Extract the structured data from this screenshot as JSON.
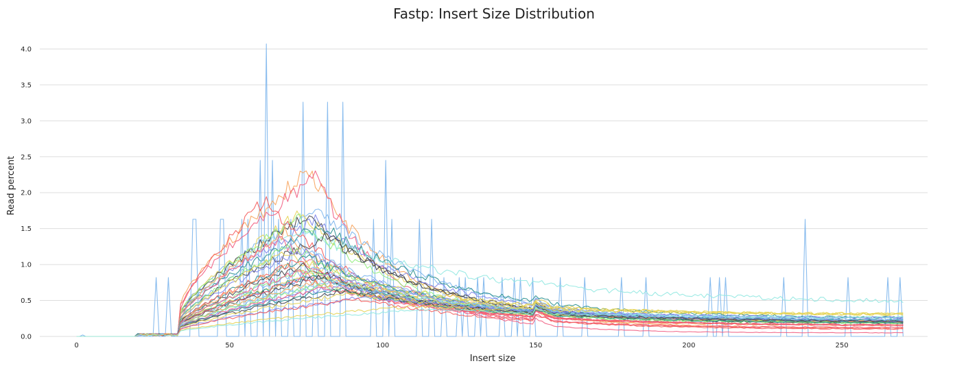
{
  "chart_data": {
    "type": "line",
    "title": "Fastp: Insert Size Distribution",
    "xlabel": "Insert size",
    "ylabel": "Read percent",
    "xlim": [
      -12,
      278
    ],
    "ylim": [
      0,
      4.3
    ],
    "xticks": [
      0,
      50,
      100,
      150,
      200,
      250
    ],
    "yticks": [
      0.0,
      0.5,
      1.0,
      1.5,
      2.0,
      2.5,
      3.0,
      3.5,
      4.0
    ],
    "grid": "horizontal",
    "legend": "none",
    "x_range": [
      0,
      270
    ],
    "series": [
      {
        "color": "#7cb5ec",
        "peak_x": 62,
        "peak_y": 4.07,
        "style": "spiky",
        "spikes": [
          [
            26,
            0.82
          ],
          [
            30,
            0.82
          ],
          [
            38,
            1.63
          ],
          [
            39,
            1.63
          ],
          [
            47,
            1.63
          ],
          [
            48,
            1.63
          ],
          [
            54,
            1.63
          ],
          [
            56,
            1.63
          ],
          [
            60,
            2.45
          ],
          [
            62,
            4.07
          ],
          [
            64,
            2.45
          ],
          [
            66,
            1.63
          ],
          [
            70,
            1.63
          ],
          [
            74,
            3.26
          ],
          [
            78,
            1.63
          ],
          [
            82,
            3.26
          ],
          [
            87,
            3.26
          ],
          [
            97,
            1.63
          ],
          [
            101,
            2.45
          ],
          [
            103,
            1.63
          ],
          [
            112,
            1.63
          ],
          [
            116,
            1.63
          ],
          [
            120,
            0.82
          ],
          [
            125,
            0.82
          ],
          [
            127,
            0.82
          ],
          [
            131,
            0.82
          ],
          [
            133,
            0.82
          ],
          [
            139,
            0.82
          ],
          [
            143,
            0.82
          ],
          [
            145,
            0.82
          ],
          [
            149,
            0.82
          ],
          [
            158,
            0.82
          ],
          [
            166,
            0.82
          ],
          [
            178,
            0.82
          ],
          [
            186,
            0.82
          ],
          [
            207,
            0.82
          ],
          [
            210,
            0.82
          ],
          [
            212,
            0.82
          ],
          [
            231,
            0.82
          ],
          [
            238,
            1.63
          ],
          [
            252,
            0.82
          ],
          [
            265,
            0.82
          ],
          [
            269,
            0.82
          ]
        ]
      },
      {
        "color": "#f7a35c",
        "peak_x": 76,
        "peak_y": 2.3,
        "tail": 0.12,
        "decay": 0.7
      },
      {
        "color": "#f15c80",
        "peak_x": 78,
        "peak_y": 2.22,
        "tail": 0.05,
        "decay": 0.85
      },
      {
        "color": "#7cb5ec",
        "peak_x": 79,
        "peak_y": 1.8,
        "tail": 0.2,
        "decay": 0.5
      },
      {
        "color": "#e4d354",
        "peak_x": 74,
        "peak_y": 1.72,
        "tail": 0.18,
        "decay": 0.55
      },
      {
        "color": "#434348",
        "peak_x": 75,
        "peak_y": 1.68,
        "tail": 0.2,
        "decay": 0.55
      },
      {
        "color": "#90ed7d",
        "peak_x": 72,
        "peak_y": 1.65,
        "tail": 0.15,
        "decay": 0.55
      },
      {
        "color": "#8085e9",
        "peak_x": 78,
        "peak_y": 1.6,
        "tail": 0.22,
        "decay": 0.5
      },
      {
        "color": "#2b908f",
        "peak_x": 80,
        "peak_y": 1.55,
        "tail": 0.25,
        "decay": 0.45
      },
      {
        "color": "#f45b5b",
        "peak_x": 62,
        "peak_y": 1.9,
        "tail": 0.1,
        "decay": 0.65
      },
      {
        "color": "#91e8e1",
        "peak_x": 70,
        "peak_y": 1.5,
        "tail": 0.46,
        "decay": 0.3
      },
      {
        "color": "#f7a35c",
        "peak_x": 68,
        "peak_y": 1.45,
        "tail": 0.15,
        "decay": 0.6
      },
      {
        "color": "#434348",
        "peak_x": 82,
        "peak_y": 1.4,
        "tail": 0.18,
        "decay": 0.5
      },
      {
        "color": "#f15c80",
        "peak_x": 66,
        "peak_y": 1.35,
        "tail": 0.12,
        "decay": 0.6
      },
      {
        "color": "#7cb5ec",
        "peak_x": 72,
        "peak_y": 1.3,
        "tail": 0.2,
        "decay": 0.5
      },
      {
        "color": "#90ed7d",
        "peak_x": 70,
        "peak_y": 1.25,
        "tail": 0.18,
        "decay": 0.5
      },
      {
        "color": "#8085e9",
        "peak_x": 74,
        "peak_y": 1.2,
        "tail": 0.2,
        "decay": 0.48
      },
      {
        "color": "#e4d354",
        "peak_x": 68,
        "peak_y": 1.15,
        "tail": 0.3,
        "decay": 0.45
      },
      {
        "color": "#2b908f",
        "peak_x": 76,
        "peak_y": 1.1,
        "tail": 0.2,
        "decay": 0.45
      },
      {
        "color": "#f45b5b",
        "peak_x": 72,
        "peak_y": 1.05,
        "tail": 0.15,
        "decay": 0.5
      },
      {
        "color": "#434348",
        "peak_x": 74,
        "peak_y": 1.0,
        "tail": 0.18,
        "decay": 0.45
      },
      {
        "color": "#f7a35c",
        "peak_x": 70,
        "peak_y": 0.98,
        "tail": 0.2,
        "decay": 0.45
      },
      {
        "color": "#7cb5ec",
        "peak_x": 78,
        "peak_y": 0.95,
        "tail": 0.22,
        "decay": 0.42
      },
      {
        "color": "#90ed7d",
        "peak_x": 75,
        "peak_y": 0.92,
        "tail": 0.2,
        "decay": 0.42
      },
      {
        "color": "#f15c80",
        "peak_x": 73,
        "peak_y": 0.9,
        "tail": 0.15,
        "decay": 0.45
      },
      {
        "color": "#8085e9",
        "peak_x": 80,
        "peak_y": 0.88,
        "tail": 0.25,
        "decay": 0.4
      },
      {
        "color": "#e4d354",
        "peak_x": 76,
        "peak_y": 0.86,
        "tail": 0.3,
        "decay": 0.38
      },
      {
        "color": "#2b908f",
        "peak_x": 77,
        "peak_y": 0.84,
        "tail": 0.22,
        "decay": 0.4
      },
      {
        "color": "#434348",
        "peak_x": 79,
        "peak_y": 0.82,
        "tail": 0.2,
        "decay": 0.4
      },
      {
        "color": "#f45b5b",
        "peak_x": 74,
        "peak_y": 0.8,
        "tail": 0.15,
        "decay": 0.42
      },
      {
        "color": "#91e8e1",
        "peak_x": 82,
        "peak_y": 0.78,
        "tail": 0.25,
        "decay": 0.38
      },
      {
        "color": "#7cb5ec",
        "peak_x": 84,
        "peak_y": 0.76,
        "tail": 0.22,
        "decay": 0.38
      },
      {
        "color": "#f7a35c",
        "peak_x": 78,
        "peak_y": 0.74,
        "tail": 0.2,
        "decay": 0.38
      },
      {
        "color": "#90ed7d",
        "peak_x": 80,
        "peak_y": 0.72,
        "tail": 0.18,
        "decay": 0.38
      },
      {
        "color": "#8085e9",
        "peak_x": 86,
        "peak_y": 0.7,
        "tail": 0.2,
        "decay": 0.35
      },
      {
        "color": "#f15c80",
        "peak_x": 82,
        "peak_y": 0.68,
        "tail": 0.15,
        "decay": 0.38
      },
      {
        "color": "#2b908f",
        "peak_x": 85,
        "peak_y": 0.66,
        "tail": 0.18,
        "decay": 0.35
      },
      {
        "color": "#434348",
        "peak_x": 88,
        "peak_y": 0.64,
        "tail": 0.2,
        "decay": 0.33
      },
      {
        "color": "#e4d354",
        "peak_x": 90,
        "peak_y": 0.6,
        "tail": 0.3,
        "decay": 0.3
      },
      {
        "color": "#8085e9",
        "peak_x": 95,
        "peak_y": 0.55,
        "tail": 0.25,
        "decay": 0.3
      },
      {
        "color": "#f45b5b",
        "peak_x": 92,
        "peak_y": 0.52,
        "tail": 0.1,
        "decay": 0.35
      },
      {
        "color": "#e4d354",
        "peak_x": 110,
        "peak_y": 0.42,
        "tail": 0.3,
        "decay": 0.15
      },
      {
        "color": "#91e8e1",
        "peak_x": 115,
        "peak_y": 0.38,
        "tail": 0.25,
        "decay": 0.2
      }
    ]
  }
}
